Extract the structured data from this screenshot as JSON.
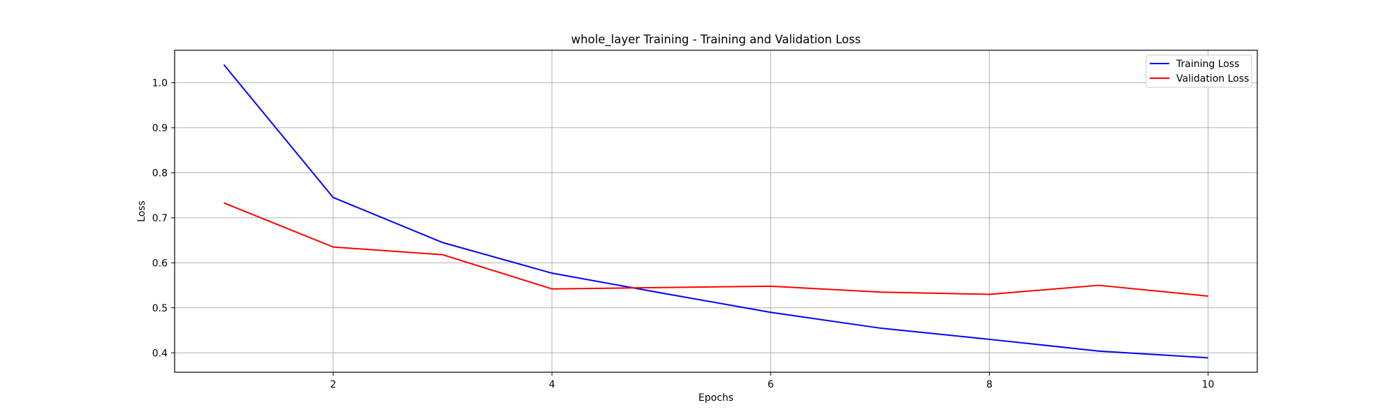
{
  "chart_data": {
    "type": "line",
    "title": "whole_layer Training - Training and Validation Loss",
    "xlabel": "Epochs",
    "ylabel": "Loss",
    "x": [
      1,
      2,
      3,
      4,
      5,
      6,
      7,
      8,
      9,
      10
    ],
    "series": [
      {
        "name": "Training Loss",
        "color": "#0000ff",
        "values": [
          1.04,
          0.745,
          0.645,
          0.577,
          0.533,
          0.49,
          0.455,
          0.43,
          0.404,
          0.389
        ]
      },
      {
        "name": "Validation Loss",
        "color": "#ff0000",
        "values": [
          0.733,
          0.635,
          0.618,
          0.542,
          0.545,
          0.548,
          0.535,
          0.53,
          0.55,
          0.526
        ]
      }
    ],
    "xlim": [
      0.55,
      10.45
    ],
    "ylim": [
      0.357,
      1.072
    ],
    "xticks": [
      2,
      4,
      6,
      8,
      10
    ],
    "xtick_labels": [
      "2",
      "4",
      "6",
      "8",
      "10"
    ],
    "yticks": [
      0.4,
      0.5,
      0.6,
      0.7,
      0.8,
      0.9,
      1.0
    ],
    "ytick_labels": [
      "0.4",
      "0.5",
      "0.6",
      "0.7",
      "0.8",
      "0.9",
      "1.0"
    ],
    "grid": true,
    "legend_position": "top-right"
  }
}
